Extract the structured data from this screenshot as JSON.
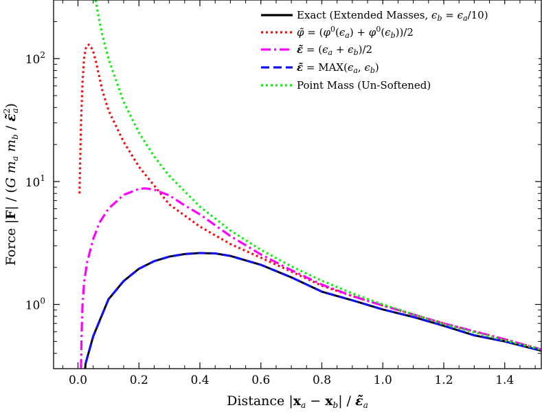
{
  "chart_data": {
    "type": "line",
    "xlabel": "Distance |x_a − x_b| / ε̃_a",
    "ylabel": "Force |F| / (G m_a m_b / ε̃_a²)",
    "xlim": [
      -0.08,
      1.52
    ],
    "ylim": [
      0.3,
      300
    ],
    "y_scale": "log",
    "grid": false,
    "legend_position": "top-right",
    "x_ticks": [
      {
        "value": 0.0,
        "label": "0.0"
      },
      {
        "value": 0.2,
        "label": "0.2"
      },
      {
        "value": 0.4,
        "label": "0.4"
      },
      {
        "value": 0.6,
        "label": "0.6"
      },
      {
        "value": 0.8,
        "label": "0.8"
      },
      {
        "value": 1.0,
        "label": "1.0"
      },
      {
        "value": 1.2,
        "label": "1.2"
      },
      {
        "value": 1.4,
        "label": "1.4"
      }
    ],
    "y_ticks": [
      {
        "value": 1,
        "label": "10",
        "exp": "0"
      },
      {
        "value": 10,
        "label": "10",
        "exp": "1"
      },
      {
        "value": 100,
        "label": "10",
        "exp": "2"
      }
    ],
    "series": [
      {
        "name": "Exact (Extended Masses, ε_b = ε_a/10)",
        "color": "#000000",
        "style": "solid",
        "x": [
          0.01,
          0.025,
          0.05,
          0.1,
          0.15,
          0.2,
          0.25,
          0.3,
          0.35,
          0.4,
          0.45,
          0.5,
          0.6,
          0.7,
          0.8,
          0.9,
          1.0,
          1.1,
          1.2,
          1.3,
          1.4,
          1.52
        ],
        "y": [
          0.12,
          0.33,
          0.55,
          1.1,
          1.55,
          1.95,
          2.25,
          2.45,
          2.57,
          2.62,
          2.6,
          2.48,
          2.1,
          1.66,
          1.27,
          1.08,
          0.91,
          0.79,
          0.67,
          0.56,
          0.5,
          0.42
        ]
      },
      {
        "name": "φ̃ = (φ⁰(ε_a) + φ⁰(ε_b))/2",
        "color": "#ee1111",
        "style": "dotted",
        "x": [
          0.005,
          0.01,
          0.015,
          0.02,
          0.025,
          0.03,
          0.035,
          0.04,
          0.05,
          0.06,
          0.08,
          0.1,
          0.15,
          0.2,
          0.3,
          0.4,
          0.5,
          0.6,
          0.7,
          0.8,
          0.9,
          1.0,
          1.2,
          1.4,
          1.52
        ],
        "y": [
          8,
          30,
          65,
          100,
          120,
          128,
          130,
          128,
          115,
          92,
          55,
          38,
          21,
          13.2,
          6.5,
          4.3,
          3.1,
          2.4,
          1.85,
          1.42,
          1.17,
          0.98,
          0.7,
          0.52,
          0.43
        ]
      },
      {
        "name": "ε̃ = (ε_a + ε_b)/2",
        "color": "#ff00ff",
        "style": "dashdot",
        "x": [
          0.01,
          0.012,
          0.015,
          0.02,
          0.03,
          0.05,
          0.07,
          0.1,
          0.15,
          0.2,
          0.22,
          0.25,
          0.3,
          0.35,
          0.4,
          0.5,
          0.6,
          0.7,
          0.8,
          0.9,
          1.0,
          1.2,
          1.4,
          1.52
        ],
        "y": [
          0.3,
          0.6,
          1.0,
          1.5,
          2.2,
          3.4,
          4.6,
          6.0,
          7.8,
          8.7,
          8.8,
          8.6,
          7.7,
          6.4,
          5.4,
          3.6,
          2.55,
          1.9,
          1.45,
          1.17,
          0.98,
          0.7,
          0.52,
          0.43
        ]
      },
      {
        "name": "ε̃ = MAX(ε_a, ε_b)",
        "color": "#1111ee",
        "style": "dashed",
        "x": [
          0.025,
          0.05,
          0.1,
          0.15,
          0.2,
          0.25,
          0.3,
          0.35,
          0.4,
          0.45,
          0.5,
          0.6,
          0.7,
          0.8,
          0.9,
          1.0,
          1.1,
          1.2,
          1.3,
          1.4,
          1.52
        ],
        "y": [
          0.33,
          0.55,
          1.1,
          1.55,
          1.95,
          2.25,
          2.45,
          2.57,
          2.62,
          2.6,
          2.48,
          2.1,
          1.66,
          1.27,
          1.08,
          0.91,
          0.79,
          0.67,
          0.56,
          0.5,
          0.42
        ]
      },
      {
        "name": "Point Mass (Un-Softened)",
        "color": "#11ee11",
        "style": "dotted",
        "x": [
          0.058,
          0.07,
          0.08,
          0.1,
          0.15,
          0.2,
          0.25,
          0.3,
          0.4,
          0.5,
          0.6,
          0.7,
          0.8,
          0.9,
          1.0,
          1.2,
          1.4,
          1.52
        ],
        "y": [
          300,
          204,
          156,
          100,
          44.4,
          25,
          16,
          11.1,
          6.25,
          4.0,
          2.78,
          2.04,
          1.56,
          1.23,
          1.0,
          0.69,
          0.51,
          0.43
        ]
      }
    ],
    "legend": [
      {
        "label": "Exact (Extended Masses, ϵ",
        "sub": "b",
        "rest": " = ϵ",
        "sub2": "a",
        "tail": "/10)"
      },
      {
        "label": "φ̃ = (φ⁰(ϵₐ) + φ⁰(ϵ_b))/2"
      },
      {
        "label": "ε̃ = (ϵₐ + ϵ_b)/2"
      },
      {
        "label": "ε̃ = MAX(ϵₐ, ϵ_b)"
      },
      {
        "label": "Point Mass (Un-Softened)"
      }
    ]
  }
}
